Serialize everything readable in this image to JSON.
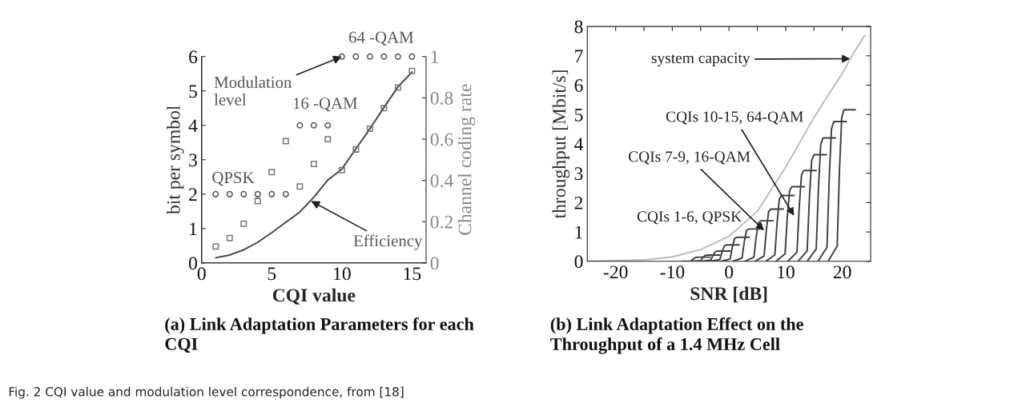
{
  "chart_data": [
    {
      "type": "scatter",
      "title": "(a) Link Adaptation Parameters for each CQI",
      "xlabel": "CQI value",
      "ylabel": "bit per symbol",
      "y2label": "Channel coding rate",
      "x": [
        1,
        2,
        3,
        4,
        5,
        6,
        7,
        8,
        9,
        10,
        11,
        12,
        13,
        14,
        15
      ],
      "series": [
        {
          "type": "scatter",
          "marker": "circle",
          "color": "#555555",
          "values": [
            2,
            2,
            2,
            2,
            2,
            2,
            4,
            4,
            4,
            6,
            6,
            6,
            6,
            6,
            6
          ]
        },
        {
          "type": "scatter",
          "marker": "square",
          "axis": "y2",
          "color": "#777777",
          "values": [
            0.08,
            0.12,
            0.19,
            0.3,
            0.44,
            0.59,
            0.37,
            0.48,
            0.6,
            0.45,
            0.55,
            0.65,
            0.75,
            0.85,
            0.93
          ]
        },
        {
          "type": "line",
          "marker": "none",
          "color": "#444444",
          "values": [
            0.15,
            0.23,
            0.38,
            0.6,
            0.88,
            1.18,
            1.48,
            1.91,
            2.41,
            2.73,
            3.32,
            3.9,
            4.52,
            5.12,
            5.55
          ]
        }
      ],
      "xlim": [
        0,
        16
      ],
      "xticks": [
        0,
        5,
        10,
        15
      ],
      "ylim": [
        0,
        6
      ],
      "yticks": [
        0,
        1,
        2,
        3,
        4,
        5,
        6
      ],
      "y2lim": [
        0,
        1
      ],
      "y2ticks": [
        0,
        0.2,
        0.4,
        0.6,
        0.8,
        1
      ],
      "grid": false,
      "annotations": [
        {
          "text": "Modulation\nlevel",
          "x": 10,
          "y": 6
        },
        {
          "text": "64 -QAM",
          "x": 10,
          "y": 6
        },
        {
          "text": "16 -QAM",
          "x": 7,
          "y": 4
        },
        {
          "text": "QPSK",
          "x": 1,
          "y": 2
        },
        {
          "text": "Efficiency",
          "x": 7.8,
          "y": 1.8
        },
        "Fig. 2 CQI value and modulation level correspondence, from [18]"
      ]
    },
    {
      "type": "line",
      "title": "(b) Link Adaptation Effect on the Throughput of a 1.4 MHz Cell",
      "xlabel": "SNR [dB]",
      "ylabel": "throughput [Mbit/s]",
      "marker": "none",
      "line_style": "solid",
      "grid": false,
      "series": [
        {
          "color": "#bbbbbb",
          "x": [
            -25,
            -20,
            -15,
            -10,
            -5,
            0,
            5,
            10,
            15,
            20,
            22,
            24
          ],
          "values": [
            0.01,
            0.02,
            0.05,
            0.15,
            0.4,
            0.85,
            1.7,
            3.2,
            4.9,
            6.4,
            7.1,
            7.7
          ]
        },
        {
          "color": "#404040",
          "x": [
            -8.3,
            -6.7,
            -6.3,
            -5.9,
            -5.5,
            -3.3
          ],
          "values": [
            0,
            0.01,
            0.08,
            0.13,
            0.14,
            0.14
          ]
        },
        {
          "color": "#404040",
          "x": [
            -6.6,
            -5.0,
            -4.6,
            -4.2,
            -3.8,
            -1.6
          ],
          "values": [
            0,
            0.02,
            0.13,
            0.2,
            0.21,
            0.21
          ]
        },
        {
          "color": "#404040",
          "x": [
            -4.8,
            -3.2,
            -2.8,
            -2.4,
            -2.0,
            0.2
          ],
          "values": [
            0,
            0.04,
            0.21,
            0.33,
            0.35,
            0.35
          ]
        },
        {
          "color": "#404040",
          "x": [
            -3.2,
            -1.6,
            -1.2,
            -0.8,
            -0.4,
            1.8
          ],
          "values": [
            0,
            0.06,
            0.34,
            0.53,
            0.56,
            0.56
          ]
        },
        {
          "color": "#404040",
          "x": [
            -1.4,
            0.2,
            0.6,
            1.0,
            1.4,
            3.6
          ],
          "values": [
            0,
            0.08,
            0.49,
            0.78,
            0.82,
            0.82
          ]
        },
        {
          "color": "#404040",
          "x": [
            0.7,
            2.3,
            2.7,
            3.1,
            3.5,
            5.7
          ],
          "values": [
            0,
            0.11,
            0.66,
            1.05,
            1.1,
            1.1
          ]
        },
        {
          "color": "#404040",
          "x": [
            2.8,
            4.4,
            4.8,
            5.2,
            5.6,
            7.8
          ],
          "values": [
            0,
            0.14,
            0.83,
            1.31,
            1.38,
            1.38
          ]
        },
        {
          "color": "#404040",
          "x": [
            4.6,
            6.2,
            6.6,
            7.0,
            7.4,
            9.6
          ],
          "values": [
            0,
            0.18,
            1.07,
            1.69,
            1.78,
            1.78
          ]
        },
        {
          "color": "#404040",
          "x": [
            6.5,
            8.1,
            8.5,
            8.9,
            9.3,
            11.5
          ],
          "values": [
            0,
            0.22,
            1.34,
            2.13,
            2.24,
            2.24
          ]
        },
        {
          "color": "#404040",
          "x": [
            8.3,
            9.9,
            10.3,
            10.7,
            11.1,
            13.3
          ],
          "values": [
            0,
            0.25,
            1.52,
            2.41,
            2.54,
            2.54
          ]
        },
        {
          "color": "#404040",
          "x": [
            10.4,
            12.0,
            12.4,
            12.8,
            13.2,
            15.4
          ],
          "values": [
            0,
            0.31,
            1.85,
            2.94,
            3.09,
            3.09
          ]
        },
        {
          "color": "#404040",
          "x": [
            12.2,
            13.8,
            14.2,
            14.6,
            15.0,
            17.2
          ],
          "values": [
            0,
            0.36,
            2.18,
            3.45,
            3.63,
            3.63
          ]
        },
        {
          "color": "#404040",
          "x": [
            13.8,
            15.4,
            15.8,
            16.2,
            16.6,
            18.8
          ],
          "values": [
            0,
            0.42,
            2.52,
            3.99,
            4.2,
            4.2
          ]
        },
        {
          "color": "#404040",
          "x": [
            15.7,
            17.3,
            17.7,
            18.1,
            18.5,
            20.7
          ],
          "values": [
            0,
            0.48,
            2.86,
            4.52,
            4.76,
            4.76
          ]
        },
        {
          "color": "#404040",
          "x": [
            17.5,
            19.1,
            19.5,
            19.9,
            20.3,
            22.3
          ],
          "values": [
            0,
            0.52,
            3.1,
            4.9,
            5.16,
            5.16
          ]
        }
      ],
      "xlim": [
        -25,
        25
      ],
      "xticks": [
        -20,
        {
          "value": -15,
          "label": null
        },
        -10,
        {
          "value": -5,
          "label": null
        },
        0,
        {
          "value": 5,
          "label": null
        },
        10,
        {
          "value": 15,
          "label": null
        },
        20
      ],
      "ylim": [
        0,
        8
      ],
      "yticks": [
        0,
        1,
        2,
        3,
        4,
        5,
        6,
        7,
        8
      ],
      "annotations": [
        {
          "text": "system capacity",
          "x": 21.4,
          "y": 6.9
        },
        {
          "text": "CQIs 10-15, 64-QAM",
          "x": 11.5,
          "y": 1.55
        },
        {
          "text": "CQIs 7-9, 16-QAM",
          "x": 6.2,
          "y": 1.05
        },
        "CQIs 1-6, QPSK"
      ]
    }
  ]
}
